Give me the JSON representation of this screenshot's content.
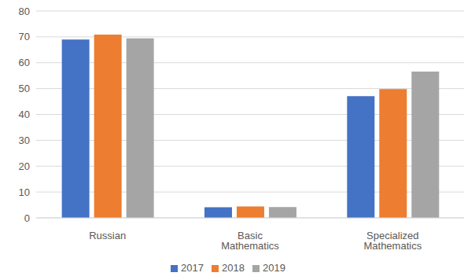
{
  "chart_data": {
    "type": "bar",
    "categories": [
      "Russian",
      "Basic Mathematics",
      "Specialized Mathematics"
    ],
    "series": [
      {
        "name": "2017",
        "color": "#4472c4",
        "values": [
          69,
          4.1,
          47.1
        ]
      },
      {
        "name": "2018",
        "color": "#ed7d31",
        "values": [
          70.9,
          4.4,
          49.8
        ]
      },
      {
        "name": "2019",
        "color": "#a5a5a5",
        "values": [
          69.4,
          4.2,
          56.6
        ]
      }
    ],
    "ylim": [
      0,
      80
    ],
    "yticks": [
      0,
      10,
      20,
      30,
      40,
      50,
      60,
      70,
      80
    ],
    "grid": true,
    "legend": "bottom"
  }
}
